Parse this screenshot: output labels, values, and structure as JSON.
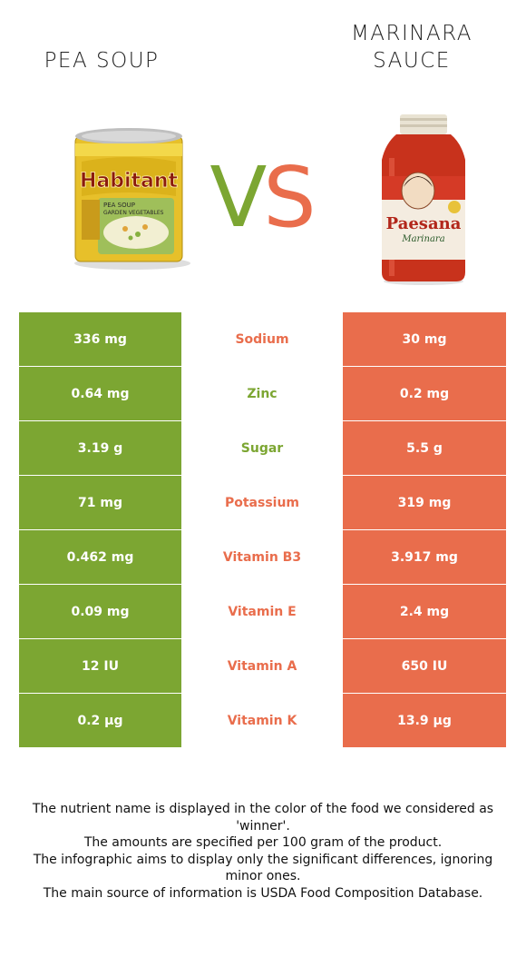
{
  "header": {
    "left_title": "PEA SOUP",
    "right_title_line1": "MARINARA",
    "right_title_line2": "SAUCE",
    "vs_v": "V",
    "vs_s": "S"
  },
  "products": {
    "left_image_icon": "pea-soup-can-image",
    "left_brand": "Habitant",
    "left_label": "PEA SOUP with GARDEN VEGETABLES",
    "right_image_icon": "marinara-sauce-jar-image",
    "right_brand": "Paesana",
    "right_label": "Marinara"
  },
  "colors": {
    "left_accent": "#7ca632",
    "right_accent": "#e96d4c"
  },
  "nutrients": [
    {
      "name": "Sodium",
      "left": "336 mg",
      "right": "30 mg",
      "winner": "right"
    },
    {
      "name": "Zinc",
      "left": "0.64 mg",
      "right": "0.2 mg",
      "winner": "left"
    },
    {
      "name": "Sugar",
      "left": "3.19 g",
      "right": "5.5 g",
      "winner": "left"
    },
    {
      "name": "Potassium",
      "left": "71 mg",
      "right": "319 mg",
      "winner": "right"
    },
    {
      "name": "Vitamin B3",
      "left": "0.462 mg",
      "right": "3.917 mg",
      "winner": "right"
    },
    {
      "name": "Vitamin E",
      "left": "0.09 mg",
      "right": "2.4 mg",
      "winner": "right"
    },
    {
      "name": "Vitamin A",
      "left": "12 IU",
      "right": "650 IU",
      "winner": "right"
    },
    {
      "name": "Vitamin K",
      "left": "0.2 µg",
      "right": "13.9 µg",
      "winner": "right"
    }
  ],
  "footer": {
    "line1": "The nutrient name is displayed in the color of the food we considered as 'winner'.",
    "line2": "The amounts are specified per 100 gram of the product.",
    "line3": "The infographic aims to display only the significant differences, ignoring minor ones.",
    "line4": "The main source of information is USDA Food Composition Database."
  }
}
